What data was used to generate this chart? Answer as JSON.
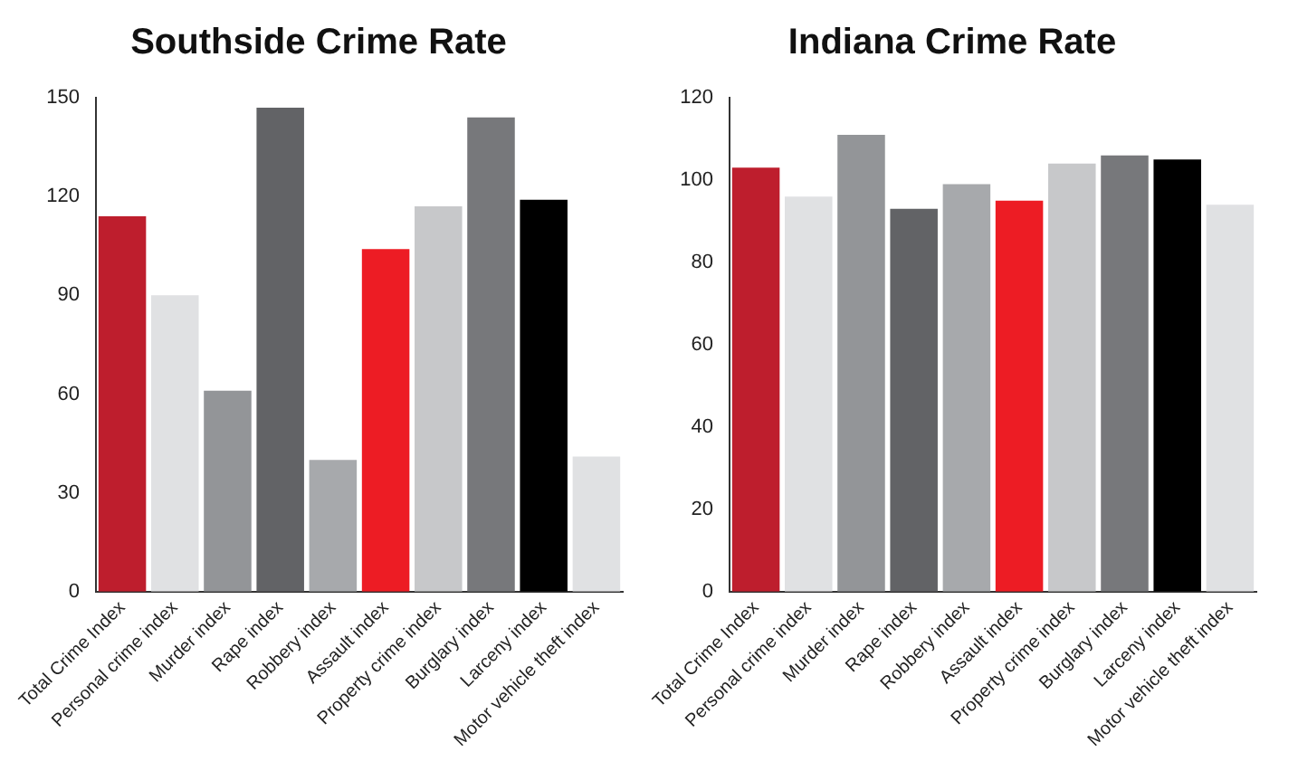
{
  "chart_data": [
    {
      "type": "bar",
      "title": "Southside Crime Rate",
      "categories": [
        "Total Crime Index",
        "Personal crime index",
        "Murder index",
        "Rape index",
        "Robbery index",
        "Assault index",
        "Property crime index",
        "Burglary index",
        "Larceny index",
        "Motor vehicle theft index"
      ],
      "values": [
        114,
        90,
        61,
        147,
        40,
        104,
        117,
        144,
        119,
        41
      ],
      "colors": [
        "#be1e2d",
        "#e0e1e3",
        "#939598",
        "#626366",
        "#a7a9ac",
        "#ed1c24",
        "#c7c8ca",
        "#77787b",
        "#000000",
        "#e0e1e3"
      ],
      "ylim": [
        0,
        150
      ],
      "yticks": [
        0,
        30,
        60,
        90,
        120,
        150
      ],
      "grid": false,
      "legend": false
    },
    {
      "type": "bar",
      "title": "Indiana Crime Rate",
      "categories": [
        "Total Crime Index",
        "Personal crime index",
        "Murder index",
        "Rape index",
        "Robbery index",
        "Assault index",
        "Property crime index",
        "Burglary index",
        "Larceny index",
        "Motor vehicle theft index"
      ],
      "values": [
        103,
        96,
        111,
        93,
        99,
        95,
        104,
        106,
        105,
        94
      ],
      "colors": [
        "#be1e2d",
        "#e0e1e3",
        "#939598",
        "#626366",
        "#a7a9ac",
        "#ed1c24",
        "#c7c8ca",
        "#77787b",
        "#000000",
        "#e0e1e3"
      ],
      "ylim": [
        0,
        120
      ],
      "yticks": [
        0,
        20,
        40,
        60,
        80,
        100,
        120
      ],
      "grid": false,
      "legend": false
    }
  ]
}
